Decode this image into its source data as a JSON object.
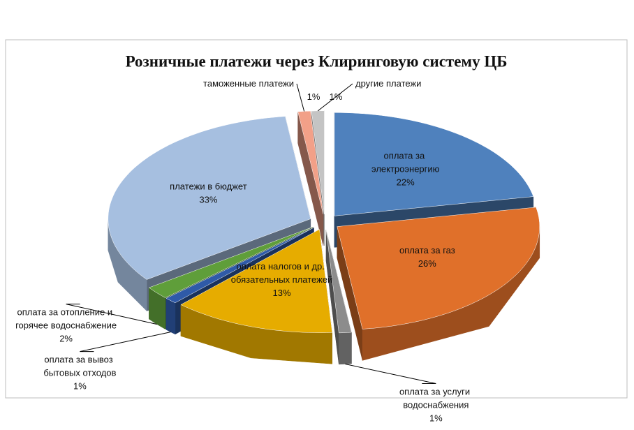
{
  "chart_data": {
    "type": "pie3d",
    "title": "Розничные платежи через Клиринговую систему ЦБ",
    "series": [
      {
        "name": "оплата за электроэнергию",
        "color": "#4f81bd",
        "values": [
          22
        ],
        "value_labels": [
          "22%"
        ]
      },
      {
        "name": "оплата за газ",
        "color": "#e0702a",
        "values": [
          26
        ],
        "value_labels": [
          "26%"
        ]
      },
      {
        "name": "оплата за услуги водоснабжения",
        "color": "#8c8c8c",
        "values": [
          1
        ],
        "value_labels": [
          "1%"
        ]
      },
      {
        "name": "оплата налогов и др. обязательных платежей",
        "color": "#e6ac00",
        "values": [
          13
        ],
        "value_labels": [
          "13%"
        ]
      },
      {
        "name": "оплата за вывоз бытовых отходов",
        "color": "#2f5aa8",
        "values": [
          1
        ],
        "value_labels": [
          "1%"
        ]
      },
      {
        "name": "оплата за отопление и горячее водоснабжение",
        "color": "#5f9e3a",
        "values": [
          2
        ],
        "value_labels": [
          "2%"
        ]
      },
      {
        "name": "платежи в бюджет",
        "color": "#a6bfe0",
        "values": [
          33
        ],
        "value_labels": [
          "33%"
        ]
      },
      {
        "name": "таможенные платежи",
        "color": "#f2a088",
        "values": [
          1
        ],
        "value_labels": [
          "1%"
        ]
      },
      {
        "name": "другие платежи",
        "color": "#c4c4c4",
        "values": [
          1
        ],
        "value_labels": [
          "1%"
        ]
      }
    ]
  }
}
